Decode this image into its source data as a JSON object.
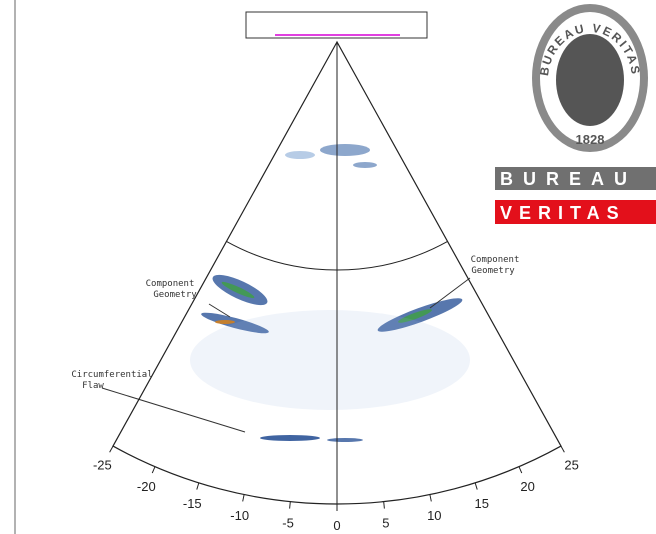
{
  "scan": {
    "annotations": [
      {
        "lines": [
          "Component",
          "Geometry"
        ]
      },
      {
        "lines": [
          "Component",
          "Geometry"
        ]
      },
      {
        "lines": [
          "Circumferential",
          "Flaw"
        ]
      }
    ],
    "arc_ticks": [
      -25,
      -20,
      -15,
      -10,
      -5,
      0,
      5,
      10,
      15,
      20,
      25
    ]
  },
  "logo": {
    "seal_text": "BUREAU VERITAS",
    "year": "1828",
    "name_line1": "BUREAU",
    "name_line2": "VERITAS"
  }
}
